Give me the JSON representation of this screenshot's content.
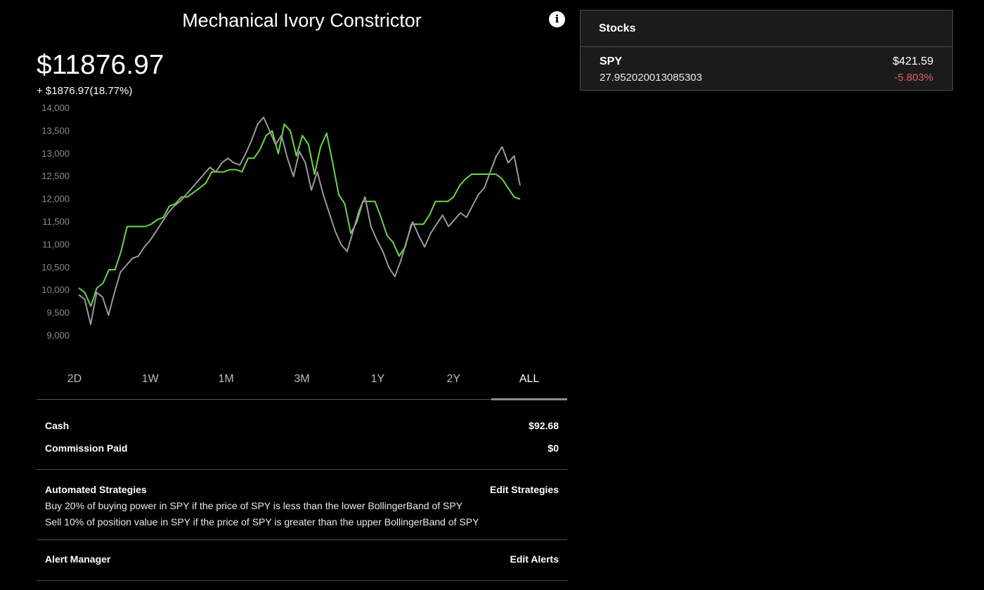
{
  "portfolio": {
    "title": "Mechanical Ivory Constrictor",
    "value": "$11876.97",
    "change": "+ $1876.97(18.77%)"
  },
  "chart_data": {
    "type": "line",
    "ylim": [
      9000,
      14000
    ],
    "yticks": [
      "14,000",
      "13,500",
      "13,000",
      "12,500",
      "12,000",
      "11,500",
      "11,000",
      "10,500",
      "10,000",
      "9,500",
      "9,000"
    ],
    "grid": false,
    "series": [
      {
        "color": "#6ad64a",
        "values": [
          10050,
          9950,
          9650,
          10050,
          10150,
          10450,
          10450,
          10850,
          11400,
          11400,
          11400,
          11400,
          11450,
          11550,
          11600,
          11850,
          11900,
          12050,
          12050,
          12150,
          12250,
          12350,
          12600,
          12600,
          12600,
          12650,
          12650,
          12600,
          12900,
          12900,
          13100,
          13400,
          13500,
          13000,
          13650,
          13500,
          12950,
          13400,
          13200,
          12550,
          13150,
          13450,
          12800,
          12100,
          11900,
          11250,
          11500,
          11950,
          11950,
          11950,
          11600,
          11200,
          11050,
          10750,
          10950,
          11450,
          11450,
          11450,
          11650,
          11950,
          11950,
          11950,
          12050,
          12300,
          12450,
          12550,
          12550,
          12550,
          12550,
          12550,
          12450,
          12250,
          12050,
          12000
        ]
      },
      {
        "color": "#9a9a9a",
        "values": [
          9900,
          9800,
          9250,
          9950,
          9850,
          9450,
          9950,
          10400,
          10550,
          10700,
          10750,
          10950,
          11100,
          11300,
          11500,
          11700,
          11850,
          11950,
          12100,
          12250,
          12400,
          12550,
          12700,
          12600,
          12800,
          12900,
          12800,
          12750,
          13000,
          13300,
          13650,
          13800,
          13500,
          13200,
          13400,
          12900,
          12500,
          13050,
          12800,
          12200,
          12600,
          12100,
          11700,
          11300,
          11000,
          10850,
          11300,
          11750,
          12050,
          11400,
          11100,
          10850,
          10500,
          10300,
          10650,
          11100,
          11500,
          11200,
          10950,
          11250,
          11450,
          11650,
          11400,
          11550,
          11700,
          11600,
          11850,
          12100,
          12250,
          12600,
          12950,
          13150,
          12800,
          12950,
          12300
        ]
      }
    ]
  },
  "ranges": [
    "2D",
    "1W",
    "1M",
    "3M",
    "1Y",
    "2Y",
    "ALL"
  ],
  "active_range": "ALL",
  "account": {
    "cash_label": "Cash",
    "cash_value": "$92.68",
    "commission_label": "Commission Paid",
    "commission_value": "$0"
  },
  "strategies": {
    "heading": "Automated Strategies",
    "edit_label": "Edit Strategies",
    "items": [
      "Buy 20% of buying power in SPY if the price of SPY is less than the lower BollingerBand of SPY",
      "Sell 10% of position value in SPY if the price of SPY is greater than the upper BollingerBand of SPY"
    ]
  },
  "alerts": {
    "heading": "Alert Manager",
    "edit_label": "Edit Alerts"
  },
  "stocks": {
    "heading": "Stocks",
    "items": [
      {
        "ticker": "SPY",
        "price": "$421.59",
        "shares": "27.952020013085303",
        "change_pct": "-5.803%",
        "change_color": "#e0625a"
      }
    ]
  },
  "icons": {
    "info": "info-icon"
  }
}
